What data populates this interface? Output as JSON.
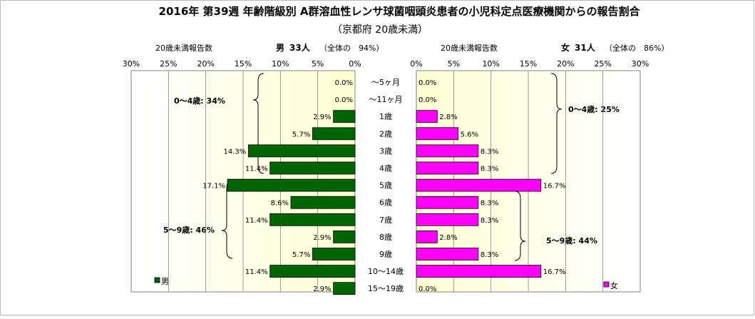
{
  "title": "2016年 第39週 年齢階級別 A群溶血性レンサ球菌咽頭炎患者の小児科定点医療機関からの報告割合",
  "subtitle": "（京都府 20歳未満）",
  "left_header": {
    "caption": "20歳未満報告数",
    "sex": "男",
    "count": "33人",
    "share": "（全体の　94%）"
  },
  "right_header": {
    "caption": "20歳未満報告数",
    "sex": "女",
    "count": "31人",
    "share": "（全体の　86%）"
  },
  "chart_data": {
    "type": "bar",
    "orientation": "horizontal",
    "layout": "back-to-back",
    "categories": [
      "～5ヶ月",
      "～11ヶ月",
      "1歳",
      "2歳",
      "3歳",
      "4歳",
      "5歳",
      "6歳",
      "7歳",
      "8歳",
      "9歳",
      "10～14歳",
      "15～19歳"
    ],
    "series": [
      {
        "name": "男",
        "color": "#006400",
        "side": "left",
        "values": [
          0.0,
          0.0,
          2.9,
          5.7,
          14.3,
          11.4,
          17.1,
          8.6,
          11.4,
          2.9,
          5.7,
          11.4,
          2.9
        ],
        "labels": [
          "0.0%",
          "0.0%",
          "2.9%",
          "5.7%",
          "14.3%",
          "11.4%",
          "17.1%",
          "8.6%",
          "11.4%",
          "2.9%",
          "5.7%",
          "11.4%",
          "2.9%"
        ]
      },
      {
        "name": "女",
        "color": "#ff00ff",
        "side": "right",
        "values": [
          0.0,
          0.0,
          2.8,
          5.6,
          8.3,
          8.3,
          16.7,
          8.3,
          8.3,
          2.8,
          8.3,
          16.7,
          0.0
        ],
        "labels": [
          "0.0%",
          "0.0%",
          "2.8%",
          "5.6%",
          "8.3%",
          "8.3%",
          "16.7%",
          "8.3%",
          "8.3%",
          "2.8%",
          "8.3%",
          "16.7%",
          "0.0%"
        ]
      }
    ],
    "xlim": [
      0,
      30
    ],
    "ticks": [
      30,
      25,
      20,
      15,
      10,
      5,
      0
    ],
    "tick_labels": [
      "30%",
      "25%",
      "20%",
      "15%",
      "10%",
      "5%",
      "0%"
    ],
    "grid": "vertical",
    "legend": {
      "left": "男",
      "right": "女",
      "placement": "bottom"
    },
    "annotations": [
      {
        "side": "left",
        "text": "0～4歳: 34%",
        "from": "～5ヶ月",
        "to": "4歳"
      },
      {
        "side": "left",
        "text": "5～9歳: 46%",
        "from": "5歳",
        "to": "9歳"
      },
      {
        "side": "right",
        "text": "0～4歳: 25%",
        "from": "～5ヶ月",
        "to": "4歳"
      },
      {
        "side": "right",
        "text": "5～9歳: 44%",
        "from": "5歳",
        "to": "9歳"
      }
    ]
  }
}
